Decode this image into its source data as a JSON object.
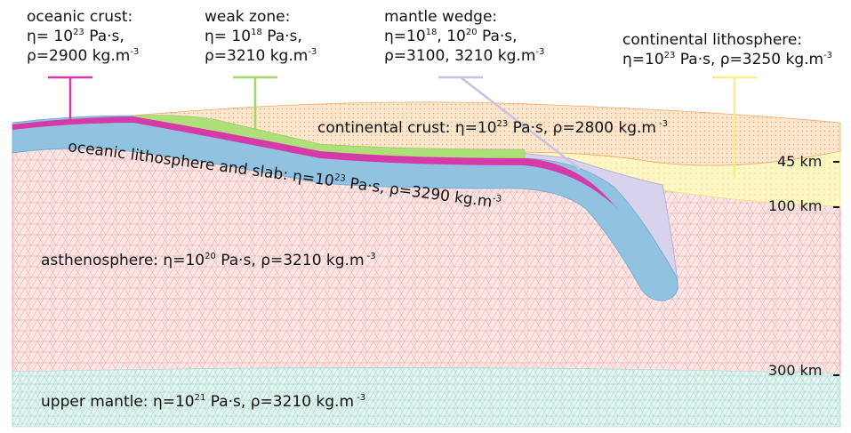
{
  "top_labels": {
    "oceanic_crust": {
      "title": "oceanic crust:",
      "eta_pre": "η= 10",
      "eta_exp": "23",
      "eta_post": " Pa·s,",
      "rho": "ρ=2900 kg.m",
      "rho_exp": "-3",
      "color": "#d63aa8"
    },
    "weak_zone": {
      "title": "weak zone:",
      "eta_pre": "η= 10",
      "eta_exp": "18",
      "eta_post": " Pa·s,",
      "rho": "ρ=3210 kg.m",
      "rho_exp": "-3",
      "color": "#a4d46a"
    },
    "mantle_wedge": {
      "title": "mantle wedge:",
      "eta_pre": "η=10",
      "eta_exp": "18",
      "eta_mid": ", 10",
      "eta_exp2": "20",
      "eta_post": " Pa·s,",
      "rho": "ρ=3100, 3210 kg.m",
      "rho_exp": "-3",
      "color": "#c7c2e3"
    },
    "continental_lithosphere": {
      "title": "continental lithosphere:",
      "eta_pre": "η=10",
      "eta_exp": "23",
      "eta_post": " Pa·s, ρ=3250 kg.m",
      "rho_exp": "-3",
      "color": "#f6ee8a"
    }
  },
  "regions": {
    "continental_crust": {
      "pre": "continental crust: η=10",
      "exp": "23",
      "post": " Pa·s, ρ=2800 kg.m",
      "exp2": " -3",
      "color": "#f7c89a"
    },
    "oceanic_slab": {
      "pre": "oceanic lithosphere and slab: η=10",
      "exp": "23",
      "post": " Pa·s, ρ=3290  kg.m",
      "exp2": "-3",
      "color": "#8ec1e0"
    },
    "asthenosphere": {
      "pre": "asthenosphere: η=10",
      "exp": "20",
      "post": " Pa·s, ρ=3210 kg.m",
      "exp2": " -3",
      "color": "#f7b4b4"
    },
    "upper_mantle": {
      "pre": "upper mantle: η=10",
      "exp": "21",
      "post": " Pa·s, ρ=3210 kg.m",
      "exp2": " -3",
      "color": "#bfe6df"
    }
  },
  "depths": [
    "45 km",
    "100 km",
    "300 km"
  ]
}
